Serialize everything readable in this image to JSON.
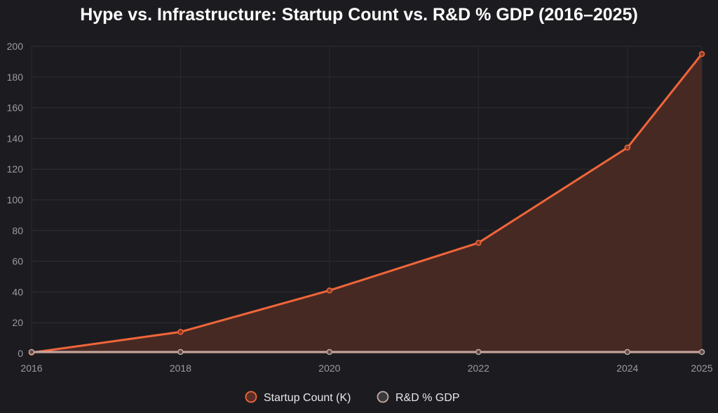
{
  "chart_data": {
    "type": "area",
    "title": "Hype vs. Infrastructure: Startup Count vs. R&D % GDP (2016–2025)",
    "xlabel": "",
    "ylabel": "",
    "x": [
      2016,
      2018,
      2020,
      2022,
      2024,
      2025
    ],
    "x_tick_labels": [
      "2016",
      "2018",
      "2020",
      "2022",
      "2024",
      "2025"
    ],
    "y_ticks": [
      0,
      20,
      40,
      60,
      80,
      100,
      120,
      140,
      160,
      180,
      200
    ],
    "ylim": [
      0,
      200
    ],
    "xlim": [
      2016,
      2025
    ],
    "grid": true,
    "legend_position": "bottom",
    "series": [
      {
        "name": "Startup Count (K)",
        "values": [
          0.5,
          14,
          41,
          72,
          134,
          195
        ],
        "color": "#f0663a",
        "fill": "#4a2a25"
      },
      {
        "name": "R&D % GDP",
        "values": [
          0.9,
          0.9,
          0.9,
          0.9,
          0.9,
          0.9
        ],
        "color": "#c8a8a2",
        "fill": "none"
      }
    ]
  }
}
